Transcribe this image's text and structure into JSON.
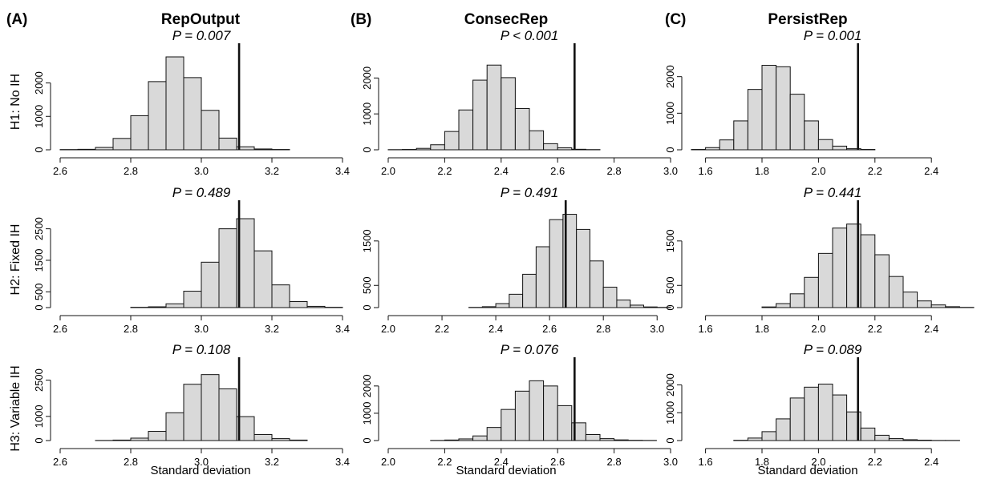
{
  "figure": {
    "columns": [
      {
        "letter": "(A)",
        "title": "RepOutput"
      },
      {
        "letter": "(B)",
        "title": "ConsecRep"
      },
      {
        "letter": "(C)",
        "title": "PersistRep"
      }
    ],
    "rows": [
      {
        "label": "H1: No IH"
      },
      {
        "label": "H2: Fixed IH"
      },
      {
        "label": "H3: Variable IH"
      }
    ],
    "xlabel": "Standard deviation",
    "colors": {
      "bar_fill": "#d9d9d9",
      "bar_stroke": "#111111",
      "observed_line": "#111111"
    }
  },
  "chart_data": [
    {
      "type": "bar",
      "panel": "A-H1",
      "column_title": "RepOutput",
      "row_label": "H1: No IH",
      "annotation": "P = 0.007",
      "observed": 3.107,
      "bin_width": 0.05,
      "xlim": [
        2.6,
        3.4
      ],
      "xticks": [
        2.6,
        2.8,
        3.0,
        3.2,
        3.4
      ],
      "xtick_labels": [
        "2.6",
        "2.8",
        "3.0",
        "3.2",
        "3.4"
      ],
      "yticks": [
        0,
        1000,
        2000
      ],
      "ytick_labels": [
        "0",
        "1000",
        "2000"
      ],
      "ylim": [
        0,
        2900
      ],
      "bins": [
        [
          2.6,
          8
        ],
        [
          2.65,
          15
        ],
        [
          2.7,
          70
        ],
        [
          2.75,
          340
        ],
        [
          2.8,
          1020
        ],
        [
          2.85,
          2040
        ],
        [
          2.9,
          2780
        ],
        [
          2.95,
          2160
        ],
        [
          3.0,
          1180
        ],
        [
          3.05,
          350
        ],
        [
          3.1,
          90
        ],
        [
          3.15,
          25
        ],
        [
          3.2,
          10
        ]
      ]
    },
    {
      "type": "bar",
      "panel": "B-H1",
      "column_title": "ConsecRep",
      "row_label": "H1: No IH",
      "annotation": "P < 0.001",
      "observed": 2.66,
      "bin_width": 0.05,
      "xlim": [
        2.0,
        3.0
      ],
      "xticks": [
        2.0,
        2.2,
        2.4,
        2.6,
        2.8,
        3.0
      ],
      "xtick_labels": [
        "2.0",
        "2.2",
        "2.4",
        "2.6",
        "2.8",
        "3.0"
      ],
      "yticks": [
        0,
        1000,
        2000
      ],
      "ytick_labels": [
        "0",
        "1000",
        "2000"
      ],
      "ylim": [
        0,
        2700
      ],
      "bins": [
        [
          2.0,
          5
        ],
        [
          2.05,
          10
        ],
        [
          2.1,
          40
        ],
        [
          2.15,
          140
        ],
        [
          2.2,
          510
        ],
        [
          2.25,
          1110
        ],
        [
          2.3,
          1940
        ],
        [
          2.35,
          2360
        ],
        [
          2.4,
          2010
        ],
        [
          2.45,
          1150
        ],
        [
          2.5,
          530
        ],
        [
          2.55,
          170
        ],
        [
          2.6,
          55
        ],
        [
          2.65,
          15
        ],
        [
          2.7,
          6
        ]
      ]
    },
    {
      "type": "bar",
      "panel": "C-H1",
      "column_title": "PersistRep",
      "row_label": "H1: No IH",
      "annotation": "P = 0.001",
      "observed": 2.14,
      "bin_width": 0.05,
      "xlim": [
        1.55,
        2.55
      ],
      "xticks": [
        1.6,
        1.8,
        2.0,
        2.2,
        2.4
      ],
      "xtick_labels": [
        "1.6",
        "1.8",
        "2.0",
        "2.2",
        "2.4"
      ],
      "yticks": [
        0,
        1000,
        2000
      ],
      "ytick_labels": [
        "0",
        "1000",
        "2000"
      ],
      "ylim": [
        0,
        2650
      ],
      "bins": [
        [
          1.55,
          10
        ],
        [
          1.6,
          60
        ],
        [
          1.65,
          270
        ],
        [
          1.7,
          790
        ],
        [
          1.75,
          1650
        ],
        [
          1.8,
          2310
        ],
        [
          1.85,
          2270
        ],
        [
          1.9,
          1520
        ],
        [
          1.95,
          790
        ],
        [
          2.0,
          280
        ],
        [
          2.05,
          100
        ],
        [
          2.1,
          30
        ],
        [
          2.15,
          10
        ]
      ]
    },
    {
      "type": "bar",
      "panel": "A-H2",
      "column_title": "RepOutput",
      "row_label": "H2: Fixed IH",
      "annotation": "P = 0.489",
      "observed": 3.107,
      "bin_width": 0.05,
      "xlim": [
        2.6,
        3.4
      ],
      "xticks": [
        2.6,
        2.8,
        3.0,
        3.2,
        3.4
      ],
      "xtick_labels": [
        "2.6",
        "2.8",
        "3.0",
        "3.2",
        "3.4"
      ],
      "yticks": [
        0,
        500,
        1500,
        2500
      ],
      "ytick_labels": [
        "0",
        "500",
        "1500",
        "2500"
      ],
      "ylim": [
        0,
        3100
      ],
      "bins": [
        [
          2.8,
          10
        ],
        [
          2.85,
          25
        ],
        [
          2.9,
          120
        ],
        [
          2.95,
          520
        ],
        [
          3.0,
          1440
        ],
        [
          3.05,
          2500
        ],
        [
          3.1,
          2820
        ],
        [
          3.15,
          1800
        ],
        [
          3.2,
          720
        ],
        [
          3.25,
          190
        ],
        [
          3.3,
          40
        ],
        [
          3.35,
          10
        ]
      ]
    },
    {
      "type": "bar",
      "panel": "B-H2",
      "column_title": "ConsecRep",
      "row_label": "H2: Fixed IH",
      "annotation": "P = 0.491",
      "observed": 2.66,
      "bin_width": 0.05,
      "xlim": [
        2.0,
        3.05
      ],
      "xticks": [
        2.0,
        2.2,
        2.4,
        2.6,
        2.8,
        3.0
      ],
      "xtick_labels": [
        "2.0",
        "2.2",
        "2.4",
        "2.6",
        "2.8",
        "3.0"
      ],
      "yticks": [
        0,
        500,
        1500
      ],
      "ytick_labels": [
        "0",
        "500",
        "1500"
      ],
      "ylim": [
        0,
        2200
      ],
      "bins": [
        [
          2.3,
          5
        ],
        [
          2.35,
          20
        ],
        [
          2.4,
          90
        ],
        [
          2.45,
          300
        ],
        [
          2.5,
          750
        ],
        [
          2.55,
          1370
        ],
        [
          2.6,
          1980
        ],
        [
          2.65,
          2100
        ],
        [
          2.7,
          1760
        ],
        [
          2.75,
          1050
        ],
        [
          2.8,
          460
        ],
        [
          2.85,
          170
        ],
        [
          2.9,
          55
        ],
        [
          2.95,
          15
        ],
        [
          3.0,
          5
        ]
      ]
    },
    {
      "type": "bar",
      "panel": "C-H2",
      "column_title": "PersistRep",
      "row_label": "H2: Fixed IH",
      "annotation": "P = 0.441",
      "observed": 2.14,
      "bin_width": 0.05,
      "xlim": [
        1.55,
        2.55
      ],
      "xticks": [
        1.6,
        1.8,
        2.0,
        2.2,
        2.4
      ],
      "xtick_labels": [
        "1.6",
        "1.8",
        "2.0",
        "2.2",
        "2.4"
      ],
      "yticks": [
        0,
        500,
        1500
      ],
      "ytick_labels": [
        "0",
        "500",
        "1500"
      ],
      "ylim": [
        0,
        2200
      ],
      "bins": [
        [
          1.8,
          15
        ],
        [
          1.85,
          90
        ],
        [
          1.9,
          310
        ],
        [
          1.95,
          680
        ],
        [
          2.0,
          1220
        ],
        [
          2.05,
          1790
        ],
        [
          2.1,
          1880
        ],
        [
          2.15,
          1640
        ],
        [
          2.2,
          1190
        ],
        [
          2.25,
          700
        ],
        [
          2.3,
          350
        ],
        [
          2.35,
          150
        ],
        [
          2.4,
          60
        ],
        [
          2.45,
          20
        ],
        [
          2.5,
          5
        ]
      ]
    },
    {
      "type": "bar",
      "panel": "A-H3",
      "column_title": "RepOutput",
      "row_label": "H3: Variable IH",
      "annotation": "P = 0.108",
      "observed": 3.107,
      "bin_width": 0.05,
      "xlim": [
        2.6,
        3.4
      ],
      "xticks": [
        2.6,
        2.8,
        3.0,
        3.2,
        3.4
      ],
      "xtick_labels": [
        "2.6",
        "2.8",
        "3.0",
        "3.2",
        "3.4"
      ],
      "yticks": [
        0,
        1000,
        2500
      ],
      "ytick_labels": [
        "0",
        "1000",
        "2500"
      ],
      "ylim": [
        0,
        3050
      ],
      "bins": [
        [
          2.7,
          5
        ],
        [
          2.75,
          20
        ],
        [
          2.8,
          100
        ],
        [
          2.85,
          380
        ],
        [
          2.9,
          1150
        ],
        [
          2.95,
          2330
        ],
        [
          3.0,
          2730
        ],
        [
          3.05,
          2140
        ],
        [
          3.1,
          990
        ],
        [
          3.15,
          250
        ],
        [
          3.2,
          80
        ],
        [
          3.25,
          20
        ]
      ]
    },
    {
      "type": "bar",
      "panel": "B-H3",
      "column_title": "ConsecRep",
      "row_label": "H3: Variable IH",
      "annotation": "P = 0.076",
      "observed": 2.66,
      "bin_width": 0.05,
      "xlim": [
        2.0,
        3.0
      ],
      "xticks": [
        2.0,
        2.2,
        2.4,
        2.6,
        2.8,
        3.0
      ],
      "xtick_labels": [
        "2.0",
        "2.2",
        "2.4",
        "2.6",
        "2.8",
        "3.0"
      ],
      "yticks": [
        0,
        1000,
        2000
      ],
      "ytick_labels": [
        "0",
        "1000",
        "2000"
      ],
      "ylim": [
        0,
        2700
      ],
      "bins": [
        [
          2.15,
          5
        ],
        [
          2.2,
          20
        ],
        [
          2.25,
          60
        ],
        [
          2.3,
          170
        ],
        [
          2.35,
          480
        ],
        [
          2.4,
          1140
        ],
        [
          2.45,
          1810
        ],
        [
          2.5,
          2190
        ],
        [
          2.55,
          2000
        ],
        [
          2.6,
          1280
        ],
        [
          2.65,
          650
        ],
        [
          2.7,
          220
        ],
        [
          2.75,
          70
        ],
        [
          2.8,
          25
        ],
        [
          2.85,
          10
        ],
        [
          2.9,
          5
        ]
      ]
    },
    {
      "type": "bar",
      "panel": "C-H3",
      "column_title": "PersistRep",
      "row_label": "H3: Variable IH",
      "annotation": "P = 0.089",
      "observed": 2.14,
      "bin_width": 0.05,
      "xlim": [
        1.55,
        2.55
      ],
      "xticks": [
        1.6,
        1.8,
        2.0,
        2.2,
        2.4
      ],
      "xtick_labels": [
        "1.6",
        "1.8",
        "2.0",
        "2.2",
        "2.4"
      ],
      "yticks": [
        0,
        1000,
        2000
      ],
      "ytick_labels": [
        "0",
        "1000",
        "2000"
      ],
      "ylim": [
        0,
        2650
      ],
      "bins": [
        [
          1.7,
          10
        ],
        [
          1.75,
          90
        ],
        [
          1.8,
          320
        ],
        [
          1.85,
          780
        ],
        [
          1.9,
          1530
        ],
        [
          1.95,
          1920
        ],
        [
          2.0,
          2030
        ],
        [
          2.05,
          1640
        ],
        [
          2.1,
          1030
        ],
        [
          2.15,
          450
        ],
        [
          2.2,
          190
        ],
        [
          2.25,
          70
        ],
        [
          2.3,
          30
        ],
        [
          2.35,
          15
        ],
        [
          2.4,
          5
        ],
        [
          2.45,
          5
        ]
      ]
    }
  ]
}
